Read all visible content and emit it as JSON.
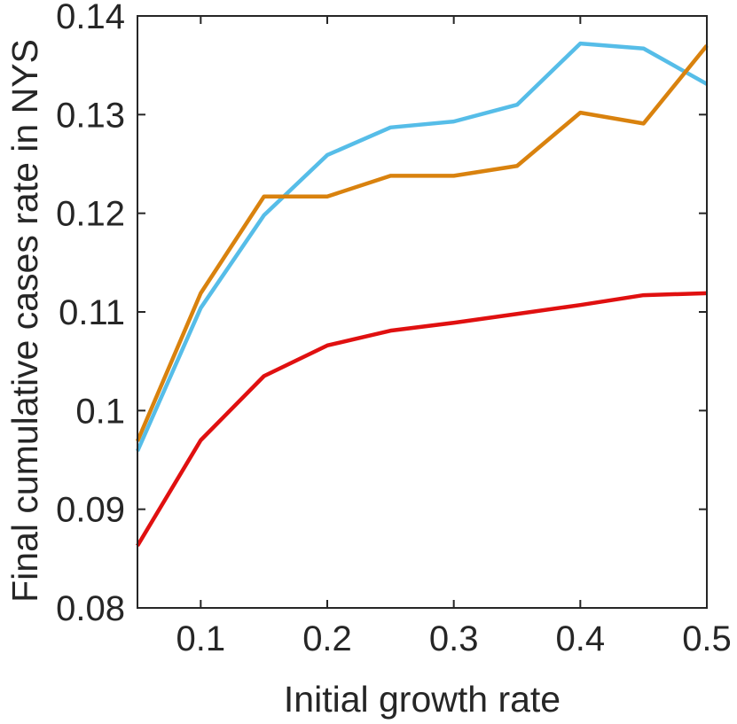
{
  "chart_data": {
    "type": "line",
    "title": "",
    "xlabel": "Initial growth rate",
    "ylabel": "Final cumulative cases rate in NYS",
    "xlim": [
      0.05,
      0.5
    ],
    "ylim": [
      0.08,
      0.14
    ],
    "x_ticks": [
      0.1,
      0.2,
      0.3,
      0.4,
      0.5
    ],
    "x_tick_labels": [
      "0.1",
      "0.2",
      "0.3",
      "0.4",
      "0.5"
    ],
    "y_ticks": [
      0.08,
      0.09,
      0.1,
      0.11,
      0.12,
      0.13,
      0.14
    ],
    "y_tick_labels": [
      "0.08",
      "0.09",
      "0.1",
      "0.11",
      "0.12",
      "0.13",
      "0.14"
    ],
    "grid": false,
    "x": [
      0.05,
      0.1,
      0.15,
      0.2,
      0.25,
      0.3,
      0.35,
      0.4,
      0.45,
      0.5
    ],
    "series": [
      {
        "color": "#e01010",
        "values": [
          0.0863,
          0.097,
          0.1035,
          0.1066,
          0.1081,
          0.1089,
          0.1098,
          0.1107,
          0.1117,
          0.1119
        ]
      },
      {
        "color": "#56bde8",
        "values": [
          0.0959,
          0.1104,
          0.1198,
          0.1259,
          0.1287,
          0.1293,
          0.131,
          0.1372,
          0.1367,
          0.1331
        ]
      },
      {
        "color": "#d9820e",
        "values": [
          0.0969,
          0.1119,
          0.1217,
          0.1217,
          0.1238,
          0.1238,
          0.1248,
          0.1302,
          0.1291,
          0.137
        ]
      }
    ]
  }
}
